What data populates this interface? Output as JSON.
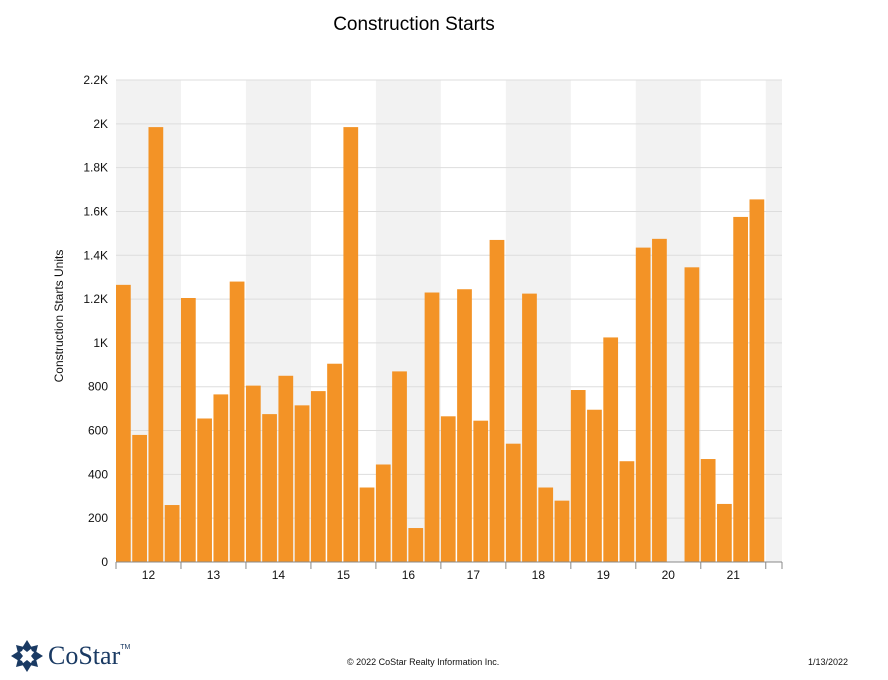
{
  "chart_data": {
    "type": "bar",
    "title": "Construction Starts",
    "ylabel": "Construction Starts Units",
    "xlabel": "",
    "ylim": [
      0,
      2200
    ],
    "y_ticks": [
      0,
      200,
      400,
      600,
      800,
      1000,
      1200,
      1400,
      1600,
      1800,
      2000,
      2200
    ],
    "y_tick_labels": [
      "0",
      "200",
      "400",
      "600",
      "800",
      "1K",
      "1.2K",
      "1.4K",
      "1.6K",
      "1.8K",
      "2K",
      "2.2K"
    ],
    "year_labels": [
      "12",
      "13",
      "14",
      "15",
      "16",
      "17",
      "18",
      "19",
      "20",
      "21"
    ],
    "quarters_per_year": 4,
    "values": [
      1265,
      580,
      1985,
      260,
      1205,
      655,
      765,
      1280,
      805,
      675,
      850,
      715,
      780,
      905,
      1985,
      340,
      445,
      870,
      155,
      1230,
      665,
      1245,
      645,
      1470,
      540,
      1225,
      340,
      280,
      785,
      695,
      1025,
      460,
      1435,
      1475,
      0,
      1345,
      470,
      265,
      1575,
      1655
    ],
    "grid": true,
    "colors": {
      "bar": "#f39326",
      "band": "#f2f2f2",
      "grid": "#dddddd",
      "axis": "#888888"
    }
  },
  "footer": {
    "logo_text": "CoStar",
    "logo_tm": "TM",
    "copyright": "© 2022 CoStar Realty Information Inc.",
    "date": "1/13/2022"
  }
}
